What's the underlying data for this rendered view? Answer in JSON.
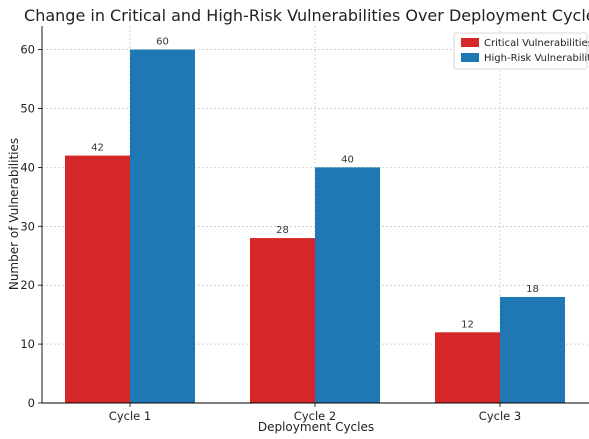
{
  "chart_data": {
    "type": "bar",
    "title": "Change in Critical and High-Risk Vulnerabilities Over Deployment Cycles",
    "xlabel": "Deployment Cycles",
    "ylabel": "Number of Vulnerabilities",
    "categories": [
      "Cycle 1",
      "Cycle 2",
      "Cycle 3"
    ],
    "series": [
      {
        "name": "Critical Vulnerabilities",
        "values": [
          42,
          28,
          12
        ],
        "color": "#d62728"
      },
      {
        "name": "High-Risk Vulnerabilities",
        "values": [
          60,
          40,
          18
        ],
        "color": "#1f77b4"
      }
    ],
    "ylim": [
      0,
      64
    ],
    "yticks": [
      0,
      10,
      20,
      30,
      40,
      50,
      60
    ],
    "grid": true,
    "legend": "top-right",
    "data_labels": true
  }
}
